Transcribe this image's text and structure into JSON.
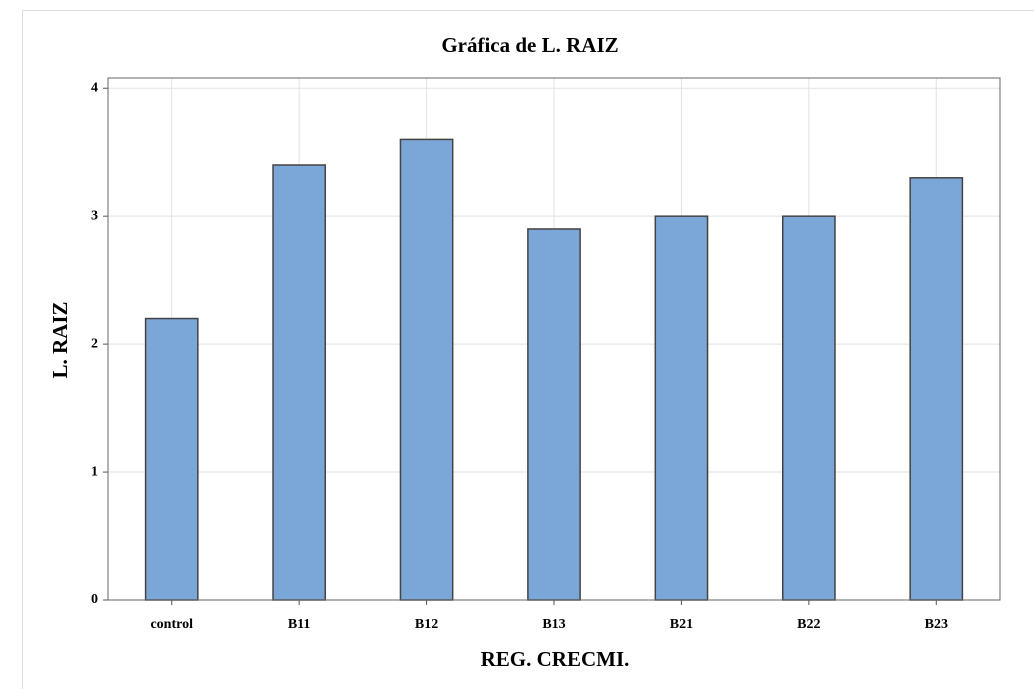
{
  "chart_data": {
    "type": "bar",
    "title": "Gráfica de L. RAIZ",
    "x_label": "REG. CRECMI.",
    "y_label": "L. RAIZ",
    "categories": [
      "control",
      "B11",
      "B12",
      "B13",
      "B21",
      "B22",
      "B23"
    ],
    "values": [
      2.2,
      3.4,
      3.6,
      2.9,
      3.0,
      3.0,
      3.3
    ],
    "color": "#7ba6d8",
    "ylim": [
      0,
      4.08
    ],
    "yticks": [
      0,
      1,
      2,
      3,
      4
    ],
    "grid": true
  }
}
